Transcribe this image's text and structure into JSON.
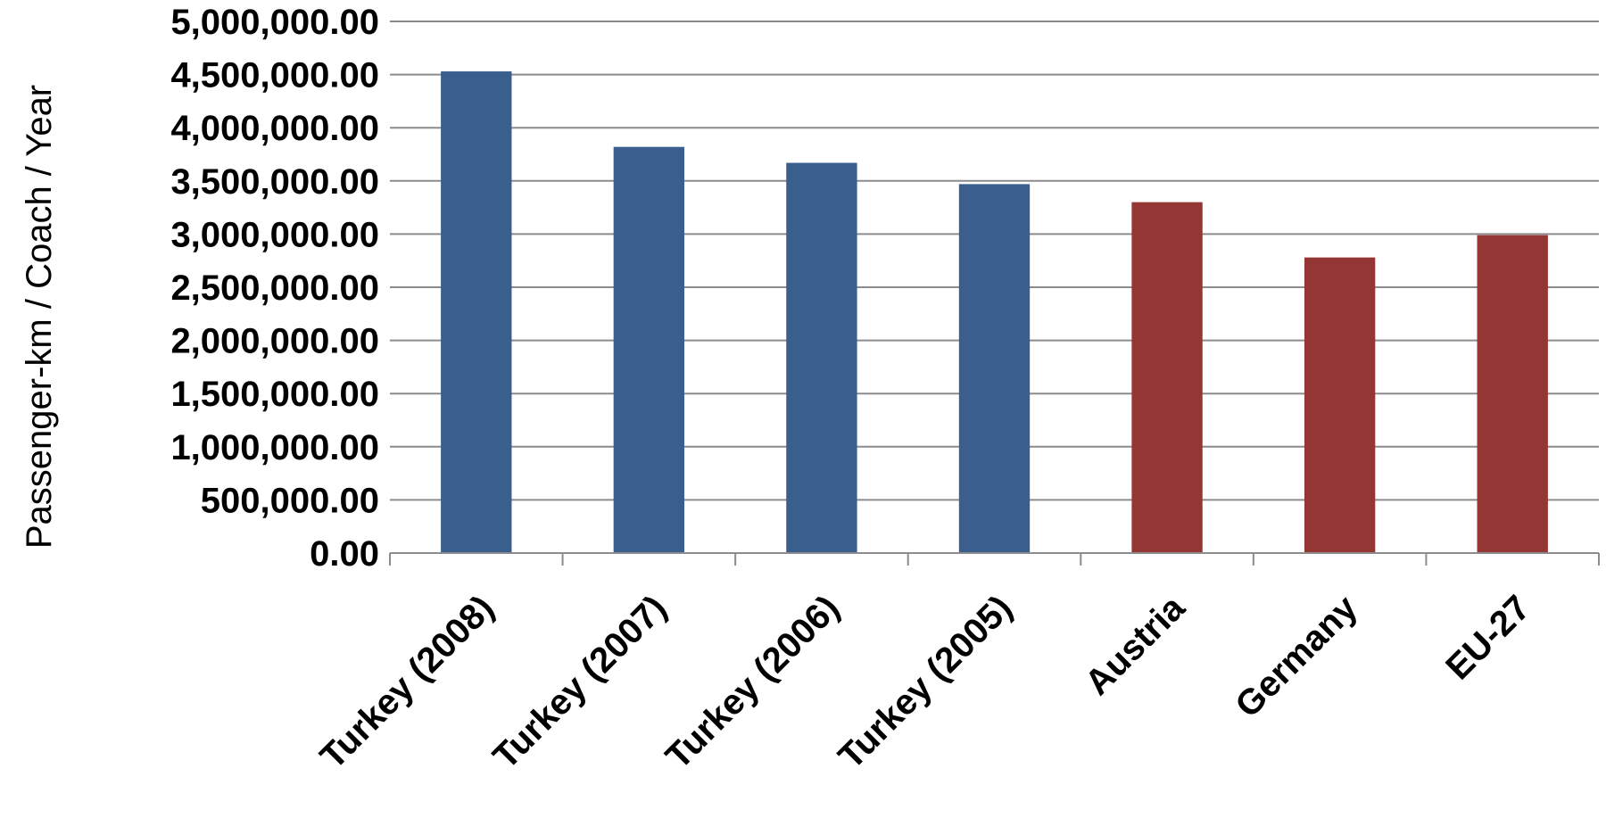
{
  "chart_data": {
    "type": "bar",
    "title": "",
    "xlabel": "",
    "ylabel": "Passenger-km / Coach / Year",
    "categories": [
      "Turkey (2008)",
      "Turkey (2007)",
      "Turkey (2006)",
      "Turkey (2005)",
      "Austria",
      "Germany",
      "EU-27"
    ],
    "values": [
      4530000,
      3820000,
      3670000,
      3470000,
      3300000,
      2780000,
      2990000
    ],
    "bar_colors": [
      "#3A5F8F",
      "#3A5F8F",
      "#3A5F8F",
      "#3A5F8F",
      "#943634",
      "#943634",
      "#943634"
    ],
    "ylim": [
      0,
      5000000
    ],
    "yticks": [
      0,
      500000,
      1000000,
      1500000,
      2000000,
      2500000,
      3000000,
      3500000,
      4000000,
      4500000,
      5000000
    ],
    "ytick_labels": [
      "0.00",
      "500,000.00",
      "1,000,000.00",
      "1,500,000.00",
      "2,000,000.00",
      "2,500,000.00",
      "3,000,000.00",
      "3,500,000.00",
      "4,000,000.00",
      "4,500,000.00",
      "5,000,000.00"
    ],
    "grid": true,
    "legend": "none",
    "gridline_color": "#8C8C8C"
  }
}
